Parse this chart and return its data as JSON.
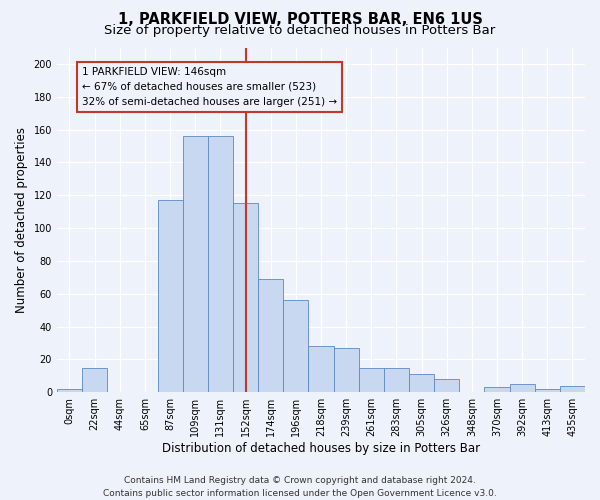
{
  "title": "1, PARKFIELD VIEW, POTTERS BAR, EN6 1US",
  "subtitle": "Size of property relative to detached houses in Potters Bar",
  "xlabel": "Distribution of detached houses by size in Potters Bar",
  "ylabel": "Number of detached properties",
  "bin_labels": [
    "0sqm",
    "22sqm",
    "44sqm",
    "65sqm",
    "87sqm",
    "109sqm",
    "131sqm",
    "152sqm",
    "174sqm",
    "196sqm",
    "218sqm",
    "239sqm",
    "261sqm",
    "283sqm",
    "305sqm",
    "326sqm",
    "348sqm",
    "370sqm",
    "392sqm",
    "413sqm",
    "435sqm"
  ],
  "bar_values": [
    2,
    15,
    0,
    0,
    117,
    156,
    156,
    115,
    69,
    56,
    28,
    27,
    15,
    15,
    11,
    8,
    0,
    3,
    5,
    2,
    4
  ],
  "bar_color": "#c8d8f0",
  "bar_edge_color": "#5a8ac6",
  "vline_x_index": 7.0,
  "vline_color": "#c0392b",
  "annotation_box_color": "#c0392b",
  "annotation_text_line1": "1 PARKFIELD VIEW: 146sqm",
  "annotation_text_line2": "← 67% of detached houses are smaller (523)",
  "annotation_text_line3": "32% of semi-detached houses are larger (251) →",
  "footer_line1": "Contains HM Land Registry data © Crown copyright and database right 2024.",
  "footer_line2": "Contains public sector information licensed under the Open Government Licence v3.0.",
  "ylim": [
    0,
    210
  ],
  "yticks": [
    0,
    20,
    40,
    60,
    80,
    100,
    120,
    140,
    160,
    180,
    200
  ],
  "background_color": "#eef2fa",
  "grid_color": "#ffffff",
  "title_fontsize": 10.5,
  "subtitle_fontsize": 9.5,
  "axis_label_fontsize": 8.5,
  "tick_fontsize": 7,
  "footer_fontsize": 6.5,
  "annotation_fontsize": 7.5
}
